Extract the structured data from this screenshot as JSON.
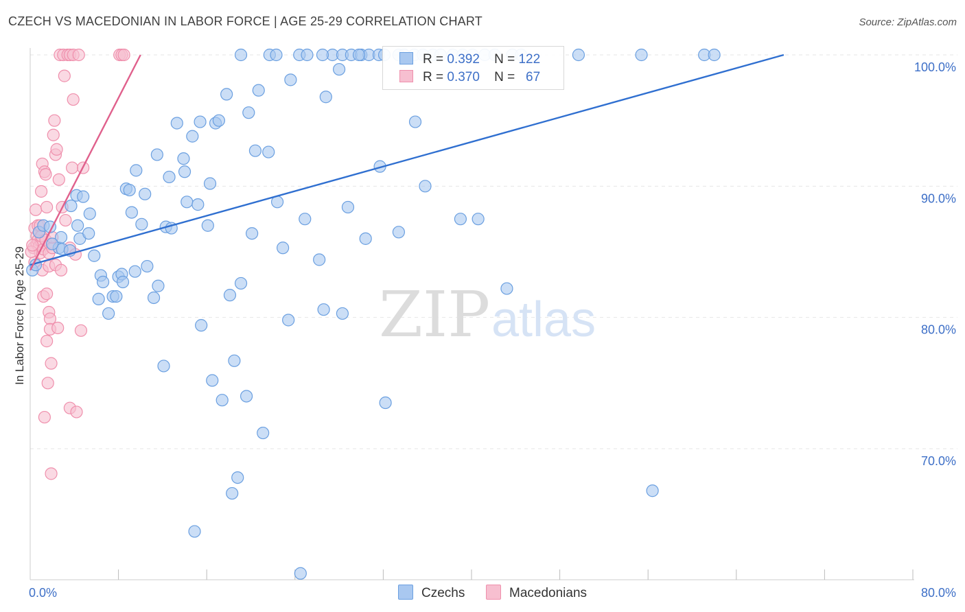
{
  "title": "CZECH VS MACEDONIAN IN LABOR FORCE | AGE 25-29 CORRELATION CHART",
  "source": "Source: ZipAtlas.com",
  "watermark": {
    "zip": "ZIP",
    "atlas": "atlas"
  },
  "legend_stats": {
    "czechs": {
      "r_label": "R =",
      "r_value": "0.392",
      "n_label": "N =",
      "n_value": "122"
    },
    "macedonians": {
      "r_label": "R =",
      "r_value": "0.370",
      "n_label": "N =",
      "n_value": "67"
    }
  },
  "legend": {
    "czechs": "Czechs",
    "macedonians": "Macedonians"
  },
  "colors": {
    "czech_fill": "#a9c8f0",
    "czech_stroke": "#6a9fe0",
    "czech_line": "#2f6fd0",
    "mac_fill": "#f7bfd0",
    "mac_stroke": "#ef8fac",
    "mac_line": "#e0608c",
    "axis_text": "#3d6fc7",
    "grid": "#e6e6e6"
  },
  "chart_data": {
    "type": "scatter",
    "title": "CZECH VS MACEDONIAN IN LABOR FORCE | AGE 25-29 CORRELATION CHART",
    "xlabel": "",
    "ylabel": "In Labor Force | Age 25-29",
    "xlim": [
      0,
      80
    ],
    "ylim": [
      59,
      101
    ],
    "x_ticks": [
      {
        "value": 0,
        "label": "0.0%"
      },
      {
        "value": 80,
        "label": "80.0%"
      }
    ],
    "y_ticks": [
      {
        "value": 100,
        "label": "100.0%"
      },
      {
        "value": 90,
        "label": "90.0%"
      },
      {
        "value": 80,
        "label": "80.0%"
      },
      {
        "value": 70,
        "label": "70.0%"
      }
    ],
    "x_minor_ticks": [
      8,
      16,
      24,
      32,
      40,
      48,
      56,
      64,
      72,
      80
    ],
    "series": [
      {
        "name": "Czechs",
        "r": 0.392,
        "n": 122,
        "trend": {
          "x": [
            0,
            68.3
          ],
          "y": [
            84.0,
            100.0
          ]
        },
        "points": [
          [
            0.2,
            83.6
          ],
          [
            0.8,
            86.5
          ],
          [
            1.2,
            87.0
          ],
          [
            1.8,
            86.9
          ],
          [
            2.6,
            85.3
          ],
          [
            2.8,
            86.1
          ],
          [
            2.9,
            85.2
          ],
          [
            3.6,
            85.1
          ],
          [
            3.7,
            88.5
          ],
          [
            4.2,
            89.3
          ],
          [
            4.3,
            87.0
          ],
          [
            4.5,
            86.0
          ],
          [
            4.8,
            89.2
          ],
          [
            5.3,
            86.4
          ],
          [
            5.4,
            87.9
          ],
          [
            5.8,
            84.7
          ],
          [
            6.2,
            81.4
          ],
          [
            6.4,
            83.2
          ],
          [
            6.6,
            82.7
          ],
          [
            7.1,
            80.3
          ],
          [
            7.5,
            81.6
          ],
          [
            7.8,
            81.6
          ],
          [
            8.0,
            83.1
          ],
          [
            8.3,
            83.3
          ],
          [
            8.4,
            82.7
          ],
          [
            8.7,
            89.8
          ],
          [
            9.0,
            89.7
          ],
          [
            9.6,
            91.2
          ],
          [
            9.2,
            88.0
          ],
          [
            10.1,
            87.1
          ],
          [
            10.4,
            89.4
          ],
          [
            10.6,
            83.9
          ],
          [
            11.2,
            81.5
          ],
          [
            11.6,
            82.4
          ],
          [
            11.5,
            92.4
          ],
          [
            12.1,
            76.3
          ],
          [
            12.3,
            86.9
          ],
          [
            12.6,
            90.7
          ],
          [
            12.8,
            86.8
          ],
          [
            13.3,
            94.8
          ],
          [
            13.9,
            92.1
          ],
          [
            14.0,
            91.1
          ],
          [
            14.2,
            88.8
          ],
          [
            14.7,
            93.8
          ],
          [
            15.2,
            88.6
          ],
          [
            15.4,
            94.9
          ],
          [
            15.5,
            79.4
          ],
          [
            16.1,
            87.0
          ],
          [
            16.3,
            90.2
          ],
          [
            16.5,
            75.2
          ],
          [
            16.8,
            94.8
          ],
          [
            17.1,
            95.0
          ],
          [
            17.4,
            73.7
          ],
          [
            17.8,
            97.0
          ],
          [
            18.1,
            81.7
          ],
          [
            18.5,
            76.7
          ],
          [
            18.8,
            67.8
          ],
          [
            19.1,
            82.6
          ],
          [
            19.6,
            74.0
          ],
          [
            19.8,
            95.6
          ],
          [
            20.1,
            86.4
          ],
          [
            20.4,
            92.7
          ],
          [
            20.7,
            97.3
          ],
          [
            21.1,
            71.2
          ],
          [
            21.6,
            92.6
          ],
          [
            22.4,
            88.8
          ],
          [
            22.9,
            85.3
          ],
          [
            23.4,
            79.8
          ],
          [
            23.6,
            98.1
          ],
          [
            24.5,
            60.5
          ],
          [
            24.9,
            87.5
          ],
          [
            26.2,
            84.4
          ],
          [
            26.8,
            96.8
          ],
          [
            26.6,
            80.6
          ],
          [
            28.0,
            98.9
          ],
          [
            28.3,
            80.3
          ],
          [
            28.8,
            88.4
          ],
          [
            30.4,
            86.0
          ],
          [
            31.7,
            91.5
          ],
          [
            32.2,
            73.5
          ],
          [
            33.4,
            86.5
          ],
          [
            34.9,
            94.9
          ],
          [
            35.8,
            90.0
          ],
          [
            39.0,
            87.5
          ],
          [
            40.6,
            87.5
          ],
          [
            43.2,
            82.2
          ],
          [
            56.4,
            66.8
          ],
          [
            0.5,
            84.0
          ],
          [
            2.0,
            85.6
          ],
          [
            9.5,
            83.5
          ],
          [
            14.9,
            63.7
          ],
          [
            18.3,
            66.6
          ],
          [
            19.1,
            100.0
          ],
          [
            21.7,
            100.0
          ],
          [
            22.3,
            100.0
          ],
          [
            24.4,
            100.0
          ],
          [
            25.1,
            100.0
          ],
          [
            27.4,
            100.0
          ],
          [
            28.3,
            100.0
          ],
          [
            29.1,
            100.0
          ],
          [
            30.0,
            100.0
          ],
          [
            30.7,
            100.0
          ],
          [
            31.6,
            100.0
          ],
          [
            32.1,
            100.0
          ],
          [
            33.4,
            100.0
          ],
          [
            34.8,
            100.0
          ],
          [
            35.6,
            100.0
          ],
          [
            36.5,
            100.0
          ],
          [
            37.2,
            100.0
          ],
          [
            38.3,
            100.0
          ],
          [
            39.2,
            100.0
          ],
          [
            40.1,
            100.0
          ],
          [
            41.2,
            100.0
          ],
          [
            42.1,
            100.0
          ],
          [
            43.7,
            100.0
          ],
          [
            44.5,
            100.0
          ],
          [
            49.7,
            100.0
          ],
          [
            55.4,
            100.0
          ],
          [
            61.1,
            100.0
          ],
          [
            62.0,
            100.0
          ],
          [
            26.5,
            100.0
          ],
          [
            29.8,
            100.0
          ],
          [
            33.9,
            100.0
          ]
        ]
      },
      {
        "name": "Macedonians",
        "r": 0.37,
        "n": 67,
        "trend": {
          "x": [
            0,
            10.0
          ],
          "y": [
            83.6,
            100.0
          ]
        },
        "points": [
          [
            0.3,
            85.3
          ],
          [
            0.4,
            84.2
          ],
          [
            0.4,
            86.8
          ],
          [
            0.5,
            88.2
          ],
          [
            0.6,
            85.6
          ],
          [
            0.6,
            86.2
          ],
          [
            0.7,
            85.9
          ],
          [
            0.7,
            87.0
          ],
          [
            0.8,
            85.4
          ],
          [
            0.8,
            86.5
          ],
          [
            0.9,
            84.9
          ],
          [
            0.9,
            87.0
          ],
          [
            1.0,
            85.8
          ],
          [
            1.0,
            86.2
          ],
          [
            1.0,
            89.6
          ],
          [
            1.1,
            83.6
          ],
          [
            1.1,
            91.7
          ],
          [
            1.2,
            81.6
          ],
          [
            1.2,
            85.2
          ],
          [
            1.3,
            91.1
          ],
          [
            1.3,
            72.4
          ],
          [
            1.4,
            90.9
          ],
          [
            1.4,
            85.9
          ],
          [
            1.5,
            81.8
          ],
          [
            1.5,
            88.4
          ],
          [
            1.5,
            78.2
          ],
          [
            1.6,
            75.0
          ],
          [
            1.7,
            84.9
          ],
          [
            1.7,
            83.9
          ],
          [
            1.7,
            80.4
          ],
          [
            1.8,
            79.9
          ],
          [
            1.8,
            79.1
          ],
          [
            1.8,
            85.6
          ],
          [
            1.9,
            68.1
          ],
          [
            1.9,
            76.5
          ],
          [
            2.0,
            85.3
          ],
          [
            2.0,
            86.1
          ],
          [
            2.1,
            93.9
          ],
          [
            2.2,
            95.0
          ],
          [
            2.3,
            84.0
          ],
          [
            2.3,
            92.4
          ],
          [
            2.4,
            92.8
          ],
          [
            2.5,
            79.2
          ],
          [
            2.6,
            90.5
          ],
          [
            2.8,
            83.6
          ],
          [
            2.9,
            88.4
          ],
          [
            3.1,
            98.4
          ],
          [
            3.2,
            87.4
          ],
          [
            3.6,
            73.1
          ],
          [
            3.6,
            85.3
          ],
          [
            3.8,
            91.4
          ],
          [
            3.9,
            96.6
          ],
          [
            4.1,
            84.8
          ],
          [
            4.2,
            72.8
          ],
          [
            4.6,
            79.0
          ],
          [
            4.8,
            91.4
          ],
          [
            0.1,
            85.0
          ],
          [
            0.2,
            85.5
          ],
          [
            2.7,
            100.0
          ],
          [
            3.0,
            100.0
          ],
          [
            3.4,
            100.0
          ],
          [
            3.6,
            100.0
          ],
          [
            3.9,
            100.0
          ],
          [
            4.4,
            100.0
          ],
          [
            8.1,
            100.0
          ],
          [
            8.3,
            100.0
          ],
          [
            8.5,
            100.0
          ]
        ]
      }
    ]
  }
}
